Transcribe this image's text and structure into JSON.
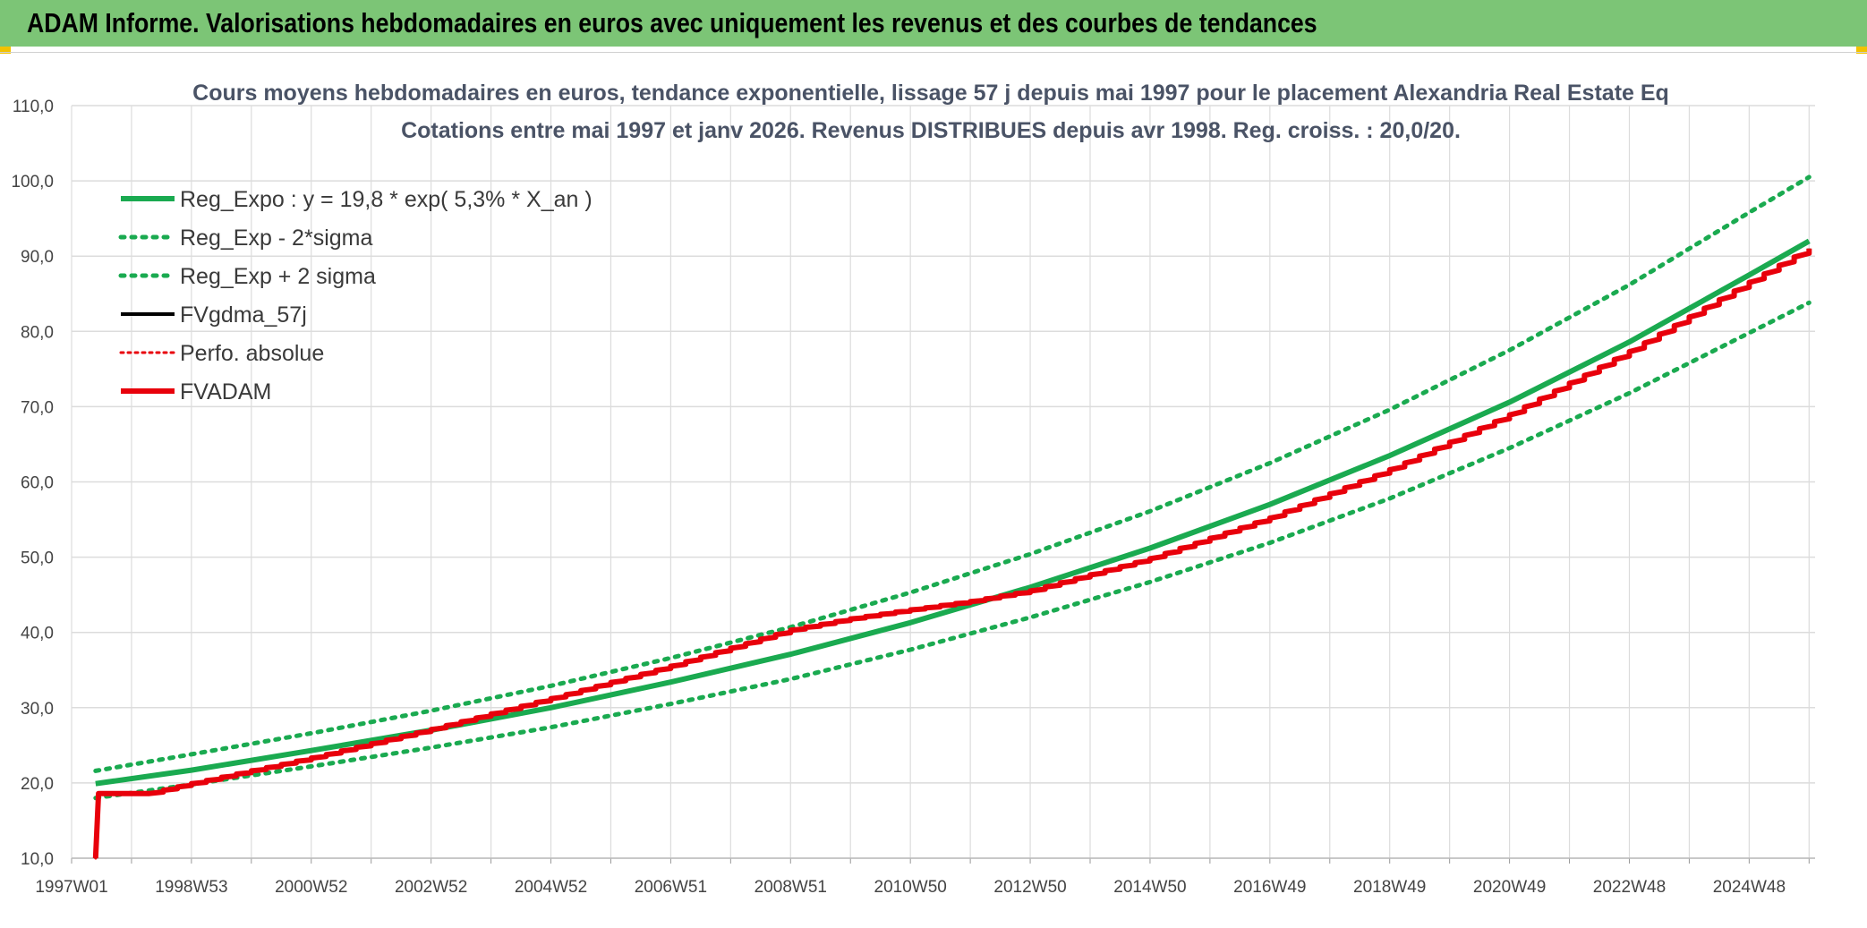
{
  "header": {
    "title": "ADAM Informe. Valorisations hebdomadaires en euros avec uniquement les revenus et des courbes de tendances"
  },
  "colors": {
    "header_bg": "#7cc576",
    "green": "#1aaa50",
    "red": "#e8000b",
    "black": "#000000",
    "grid": "#dcdcdc"
  },
  "chart_data": {
    "type": "line",
    "title": "Cours moyens hebdomadaires en euros, tendance exponentielle, lissage 57 j depuis mai 1997 pour le placement Alexandria Real Estate Eq",
    "subtitle": "Cotations entre mai 1997 et janv 2026. Revenus DISTRIBUES depuis avr 1998. Reg. croiss. : 20,0/20.",
    "xlabel": "",
    "ylabel": "",
    "xlim": [
      1997.0,
      2026.1
    ],
    "ylim": [
      10,
      110
    ],
    "yticks": [
      "10,0",
      "20,0",
      "30,0",
      "40,0",
      "50,0",
      "60,0",
      "70,0",
      "80,0",
      "90,0",
      "100,0",
      "110,0"
    ],
    "xticks": [
      {
        "label": "1997W01",
        "x": 1997.0
      },
      {
        "label": "1998W53",
        "x": 1999.0
      },
      {
        "label": "2000W52",
        "x": 2001.0
      },
      {
        "label": "2002W52",
        "x": 2003.0
      },
      {
        "label": "2004W52",
        "x": 2005.0
      },
      {
        "label": "2006W51",
        "x": 2007.0
      },
      {
        "label": "2008W51",
        "x": 2009.0
      },
      {
        "label": "2010W50",
        "x": 2011.0
      },
      {
        "label": "2012W50",
        "x": 2013.0
      },
      {
        "label": "2014W50",
        "x": 2015.0
      },
      {
        "label": "2016W49",
        "x": 2017.0
      },
      {
        "label": "2018W49",
        "x": 2019.0
      },
      {
        "label": "2020W49",
        "x": 2021.0
      },
      {
        "label": "2022W48",
        "x": 2023.0
      },
      {
        "label": "2024W48",
        "x": 2025.0
      }
    ],
    "grid": true,
    "legend_position": "top-left",
    "series": [
      {
        "name": "Reg_Expo : y = 19,8 * exp( 5,3% *  X_an )",
        "style": "solid",
        "color": "#1aaa50",
        "x": [
          1997.4,
          1999,
          2001,
          2003,
          2005,
          2007,
          2009,
          2011,
          2013,
          2015,
          2017,
          2019,
          2021,
          2023,
          2025,
          2026.0
        ],
        "y": [
          19.9,
          21.7,
          24.3,
          27.0,
          30.0,
          33.4,
          37.1,
          41.3,
          46.0,
          51.2,
          57.0,
          63.5,
          70.6,
          78.6,
          87.5,
          92.0
        ]
      },
      {
        "name": "Reg_Exp - 2*sigma",
        "style": "dotted",
        "color": "#1aaa50",
        "x": [
          1997.4,
          1999,
          2001,
          2003,
          2005,
          2007,
          2009,
          2011,
          2013,
          2015,
          2017,
          2019,
          2021,
          2023,
          2025,
          2026.0
        ],
        "y": [
          18.0,
          19.8,
          22.2,
          24.7,
          27.4,
          30.5,
          33.8,
          37.7,
          42.0,
          46.7,
          51.9,
          57.8,
          64.5,
          71.8,
          79.8,
          83.8
        ]
      },
      {
        "name": "Reg_Exp + 2 sigma",
        "style": "dotted",
        "color": "#1aaa50",
        "x": [
          1997.4,
          1999,
          2001,
          2003,
          2005,
          2007,
          2009,
          2011,
          2013,
          2015,
          2017,
          2019,
          2021,
          2023,
          2025,
          2026.0
        ],
        "y": [
          21.6,
          23.8,
          26.6,
          29.6,
          32.9,
          36.6,
          40.7,
          45.3,
          50.4,
          56.1,
          62.5,
          69.6,
          77.5,
          86.2,
          95.8,
          100.5
        ]
      },
      {
        "name": "FVgdma_57j",
        "style": "solid",
        "color": "#000000",
        "x": [
          1997.4,
          1997.45,
          1998.3,
          1999,
          2001,
          2003,
          2005,
          2007,
          2009,
          2010,
          2011,
          2012,
          2013,
          2015,
          2017,
          2019,
          2021,
          2023,
          2025,
          2026.0
        ],
        "y": [
          10.0,
          18.6,
          18.6,
          19.9,
          23.3,
          27.1,
          31.2,
          35.5,
          40.3,
          41.8,
          43.0,
          44.1,
          45.5,
          49.8,
          55.2,
          61.6,
          68.9,
          77.3,
          86.5,
          91.0
        ]
      },
      {
        "name": "Perfo. absolue",
        "style": "dotted",
        "color": "#e8000b",
        "x": [
          1997.4,
          1997.45,
          1998.3,
          1999,
          2001,
          2003,
          2005,
          2007,
          2009,
          2010,
          2011,
          2012,
          2013,
          2015,
          2017,
          2019,
          2021,
          2023,
          2025,
          2026.0
        ],
        "y": [
          10.0,
          18.6,
          18.6,
          19.9,
          23.3,
          27.1,
          31.2,
          35.5,
          40.3,
          41.8,
          43.0,
          44.1,
          45.5,
          49.8,
          55.2,
          61.6,
          68.9,
          77.3,
          86.5,
          91.0
        ]
      },
      {
        "name": "FVADAM",
        "style": "solid",
        "color": "#e8000b",
        "x": [
          1997.4,
          1997.45,
          1998.3,
          1999,
          2001,
          2003,
          2005,
          2007,
          2009,
          2010,
          2011,
          2012,
          2013,
          2015,
          2017,
          2019,
          2021,
          2023,
          2025,
          2026.0
        ],
        "y": [
          10.0,
          18.6,
          18.6,
          19.9,
          23.3,
          27.1,
          31.2,
          35.5,
          40.3,
          41.8,
          43.0,
          44.1,
          45.5,
          49.8,
          55.2,
          61.6,
          68.9,
          77.3,
          86.5,
          91.0
        ]
      }
    ]
  }
}
